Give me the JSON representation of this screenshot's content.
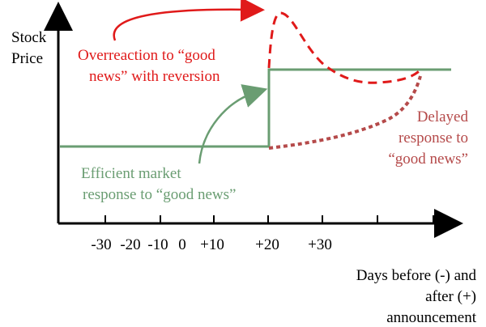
{
  "axes": {
    "y_label_line1": "Stock",
    "y_label_line2": "Price",
    "x_label_line1": "Days before (-) and",
    "x_label_line2": "after (+)",
    "x_label_line3": "announcement",
    "x_ticks": [
      "-30",
      "-20",
      "-10",
      "0",
      "+10",
      "+20",
      "+30"
    ]
  },
  "annotations": {
    "overreaction_line1": "Overreaction to “good",
    "overreaction_line2": "news” with reversion",
    "efficient_line1": "Efficient market",
    "efficient_line2": "response to “good news”",
    "delayed_line1": "Delayed",
    "delayed_line2": "response to",
    "delayed_line3": "“good news”"
  },
  "colors": {
    "axis": "#000000",
    "efficient": "#6a9d72",
    "overreaction": "#e01a1a",
    "delayed": "#b54a4a"
  }
}
